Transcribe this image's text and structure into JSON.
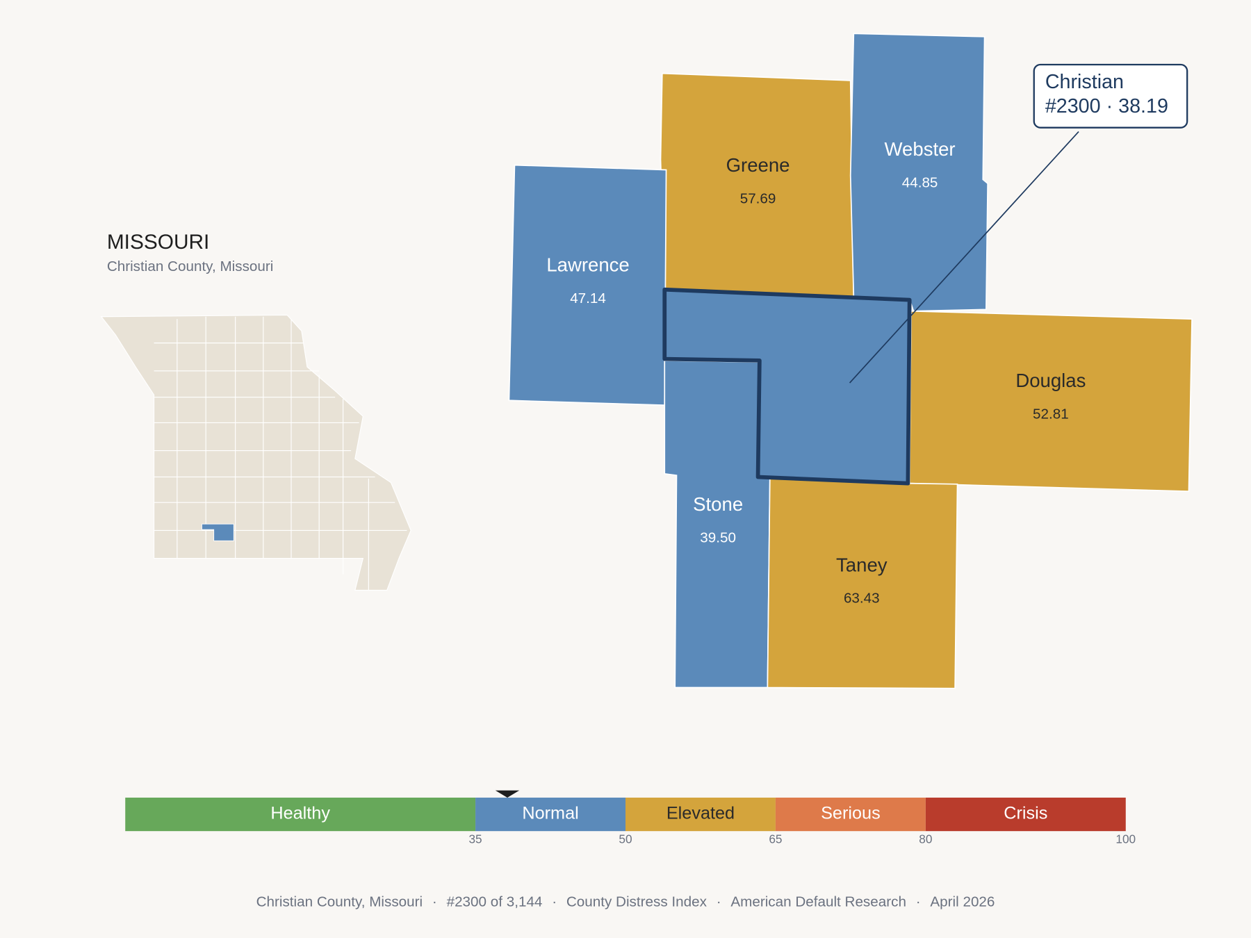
{
  "header": {
    "title": "MISSOURI",
    "subtitle": "Christian County, Missouri"
  },
  "counties": [
    {
      "name": "Greene",
      "value": "57.69"
    },
    {
      "name": "Webster",
      "value": "44.85"
    },
    {
      "name": "Lawrence",
      "value": "47.14"
    },
    {
      "name": "Douglas",
      "value": "52.81"
    },
    {
      "name": "Stone",
      "value": "39.50"
    },
    {
      "name": "Taney",
      "value": "63.43"
    }
  ],
  "selected": {
    "name": "Christian",
    "rank": "#2300",
    "separator": "·",
    "score": 38.19
  },
  "scale": {
    "bands": [
      "Healthy",
      "Normal",
      "Elevated",
      "Serious",
      "Crisis"
    ],
    "colors": [
      "#67a85a",
      "#5b8aba",
      "#d4a43c",
      "#de7a4a",
      "#b93c2c"
    ],
    "label_colors": [
      "#ffffff",
      "#ffffff",
      "#2a2a2a",
      "#ffffff",
      "#ffffff"
    ],
    "ticks": [
      35,
      50,
      65,
      80,
      100
    ]
  },
  "footer": {
    "parts": [
      "Christian County, Missouri",
      "#2300 of 3,144",
      "County Distress Index",
      "American Default Research",
      "April 2026"
    ],
    "separator": "·"
  }
}
